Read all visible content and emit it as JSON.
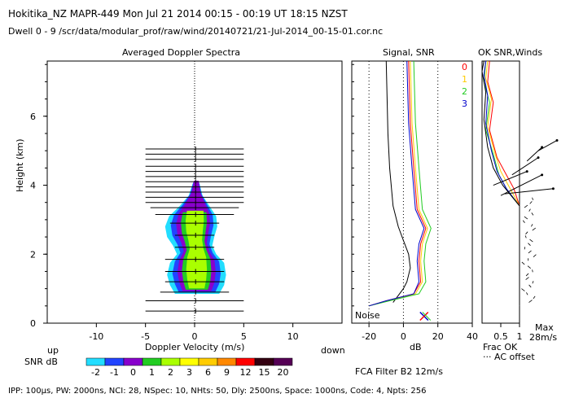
{
  "header": {
    "line1": "Hokitika_NZ   MAPR-449   Mon Jul 21 2014 00:15 - 00:19 UT 18:15 NZST",
    "line2": "Dwell   0  -   9    /scr/data/modular_prof/raw/wind/20140721/21-Jul-2014_00-15-01.cor.nc"
  },
  "panels": {
    "spectra_title": "Averaged Doppler Spectra",
    "signal_title": "Signal, SNR",
    "ok_title": "OK SNR,Winds",
    "height_label": "Height (km)",
    "velocity_label": "Doppler Velocity (m/s)",
    "db_label": "dB",
    "frac_ok_label": "Frac OK",
    "ac_offset_label": "AC offset",
    "noise_label": "Noise",
    "up_label": "up",
    "down_label": "down",
    "max_label": "Max",
    "max_value": "28m/s",
    "fca_filter": "FCA Filter B2 12m/s"
  },
  "legend": {
    "title": "SNR dB",
    "labels": [
      "-2",
      "-1",
      "0",
      "1",
      "2",
      "3",
      "6",
      "9",
      "12",
      "15",
      "20"
    ],
    "colors": [
      "#22ddff",
      "#2244ff",
      "#8800cc",
      "#22cc22",
      "#aaff00",
      "#ffff00",
      "#ffcc00",
      "#ff8800",
      "#ff0000",
      "#330011",
      "#550055"
    ]
  },
  "beam_legend": {
    "labels": [
      "0",
      "1",
      "2",
      "3"
    ],
    "colors": [
      "#ff0000",
      "#ffcc00",
      "#22cc22",
      "#0000cc"
    ]
  },
  "footer": "IPP: 100μs,  PW: 2000ns,  NCI:  28,  NSpec: 10, NHts: 50,  Dly: 2500ns,  Space: 1000ns,  Code: 4,  Npts: 256",
  "chart_data": [
    {
      "type": "heatmap",
      "title": "Averaged Doppler Spectra",
      "xlabel": "Doppler Velocity (m/s)",
      "ylabel": "Height (km)",
      "xlim": [
        -15,
        15
      ],
      "ylim": [
        0,
        7.6
      ],
      "xticks": [
        "-10",
        "-5",
        "0",
        "5",
        "10"
      ],
      "yticks": [
        "0",
        "2",
        "4",
        "6"
      ],
      "spectra_heights_km": [
        0.35,
        0.65,
        0.9,
        1.2,
        1.5,
        1.85,
        2.2,
        2.55,
        2.9,
        3.15,
        3.35,
        3.5,
        3.65,
        3.8,
        3.95,
        4.1,
        4.25,
        4.4,
        4.55,
        4.75,
        4.9,
        5.05
      ],
      "spectra_widths_ms": [
        5,
        5,
        3.5,
        3,
        3,
        3,
        2,
        2,
        2.5,
        4,
        4.5,
        5,
        5,
        5,
        5,
        5,
        5,
        5,
        5,
        5,
        5,
        5
      ],
      "echo_profile": [
        {
          "h": 0.85,
          "left": -2.0,
          "right": 2.5
        },
        {
          "h": 1.1,
          "left": -2.5,
          "right": 3.0
        },
        {
          "h": 1.4,
          "left": -2.8,
          "right": 3.2
        },
        {
          "h": 1.75,
          "left": -2.5,
          "right": 3.0
        },
        {
          "h": 2.0,
          "left": -1.8,
          "right": 2.2
        },
        {
          "h": 2.25,
          "left": -2.2,
          "right": 1.8
        },
        {
          "h": 2.5,
          "left": -2.8,
          "right": 2.0
        },
        {
          "h": 2.8,
          "left": -3.0,
          "right": 2.3
        },
        {
          "h": 3.1,
          "left": -2.6,
          "right": 2.2
        },
        {
          "h": 3.4,
          "left": -1.5,
          "right": 1.5
        },
        {
          "h": 3.7,
          "left": -0.6,
          "right": 0.8
        },
        {
          "h": 4.05,
          "left": -0.2,
          "right": 0.5
        }
      ]
    },
    {
      "type": "line",
      "title": "Signal, SNR",
      "xlabel": "dB",
      "xlim": [
        -30,
        40
      ],
      "ylim": [
        0,
        7.6
      ],
      "xticks": [
        "-20",
        "0",
        "20",
        "40"
      ],
      "series": [
        {
          "color": "#000000",
          "points": [
            [
              -6,
              0.6
            ],
            [
              -3,
              0.8
            ],
            [
              0,
              1.0
            ],
            [
              2,
              1.2
            ],
            [
              4,
              1.6
            ],
            [
              3,
              2.0
            ],
            [
              0,
              2.4
            ],
            [
              -3,
              2.8
            ],
            [
              -6,
              3.4
            ],
            [
              -8,
              4.5
            ],
            [
              -9,
              5.5
            ],
            [
              -10,
              7.6
            ]
          ]
        },
        {
          "color": "#ff0000",
          "points": [
            [
              -20,
              0.5
            ],
            [
              -10,
              0.65
            ],
            [
              6,
              0.85
            ],
            [
              10,
              1.2
            ],
            [
              9,
              1.8
            ],
            [
              10,
              2.3
            ],
            [
              13,
              2.75
            ],
            [
              8,
              3.3
            ],
            [
              6,
              4.5
            ],
            [
              4,
              5.8
            ],
            [
              3,
              7.6
            ]
          ]
        },
        {
          "color": "#ffcc00",
          "points": [
            [
              -20,
              0.5
            ],
            [
              -9,
              0.65
            ],
            [
              7,
              0.85
            ],
            [
              11,
              1.2
            ],
            [
              10,
              1.8
            ],
            [
              11,
              2.3
            ],
            [
              14,
              2.75
            ],
            [
              9,
              3.3
            ],
            [
              7,
              4.5
            ],
            [
              5,
              5.8
            ],
            [
              4,
              7.6
            ]
          ]
        },
        {
          "color": "#22cc22",
          "points": [
            [
              -20,
              0.5
            ],
            [
              -8,
              0.65
            ],
            [
              9,
              0.85
            ],
            [
              13,
              1.2
            ],
            [
              12,
              1.8
            ],
            [
              13,
              2.3
            ],
            [
              16,
              2.75
            ],
            [
              11,
              3.3
            ],
            [
              9,
              4.5
            ],
            [
              7,
              5.8
            ],
            [
              6,
              7.6
            ]
          ]
        },
        {
          "color": "#0000cc",
          "points": [
            [
              -20,
              0.5
            ],
            [
              -10,
              0.65
            ],
            [
              6,
              0.85
            ],
            [
              9,
              1.2
            ],
            [
              8,
              1.8
            ],
            [
              9,
              2.3
            ],
            [
              12,
              2.75
            ],
            [
              7,
              3.3
            ],
            [
              5,
              4.5
            ],
            [
              3,
              5.8
            ],
            [
              2,
              7.6
            ]
          ]
        }
      ]
    },
    {
      "type": "line",
      "title": "OK SNR,Winds",
      "xlabel": "Frac OK",
      "xlim": [
        0,
        1
      ],
      "ylim": [
        0,
        7.6
      ],
      "xticks": [
        "0.5",
        "1"
      ],
      "series": [
        {
          "color": "#ff0000",
          "points": [
            [
              1,
              0.5
            ],
            [
              1,
              3.4
            ],
            [
              0.85,
              3.9
            ],
            [
              0.6,
              4.4
            ],
            [
              0.4,
              4.8
            ],
            [
              0.2,
              5.6
            ],
            [
              0.3,
              6.4
            ],
            [
              0.15,
              7.0
            ],
            [
              0.2,
              7.6
            ]
          ]
        },
        {
          "color": "#ffcc00",
          "points": [
            [
              1,
              0.5
            ],
            [
              1,
              3.4
            ],
            [
              0.75,
              3.9
            ],
            [
              0.5,
              4.4
            ],
            [
              0.35,
              4.9
            ],
            [
              0.15,
              5.7
            ],
            [
              0.25,
              6.5
            ],
            [
              0.1,
              7.1
            ],
            [
              0.15,
              7.6
            ]
          ]
        },
        {
          "color": "#22cc22",
          "points": [
            [
              1,
              0.5
            ],
            [
              1,
              3.4
            ],
            [
              0.7,
              3.8
            ],
            [
              0.45,
              4.3
            ],
            [
              0.3,
              4.9
            ],
            [
              0.1,
              5.6
            ],
            [
              0.2,
              6.4
            ],
            [
              0.05,
              7.0
            ],
            [
              0.1,
              7.6
            ]
          ]
        },
        {
          "color": "#0000cc",
          "points": [
            [
              1,
              0.5
            ],
            [
              1,
              3.4
            ],
            [
              0.65,
              3.9
            ],
            [
              0.4,
              4.4
            ],
            [
              0.25,
              5.0
            ],
            [
              0.1,
              5.8
            ],
            [
              0.15,
              6.6
            ],
            [
              0.05,
              7.2
            ],
            [
              0.1,
              7.6
            ]
          ]
        },
        {
          "color": "#000000",
          "points": [
            [
              1,
              0.5
            ],
            [
              1,
              3.4
            ],
            [
              0.55,
              4.0
            ],
            [
              0.3,
              4.5
            ],
            [
              0.15,
              5.1
            ],
            [
              0.05,
              5.9
            ],
            [
              0.1,
              6.7
            ],
            [
              0.0,
              7.3
            ],
            [
              0.05,
              7.6
            ]
          ]
        }
      ]
    }
  ]
}
